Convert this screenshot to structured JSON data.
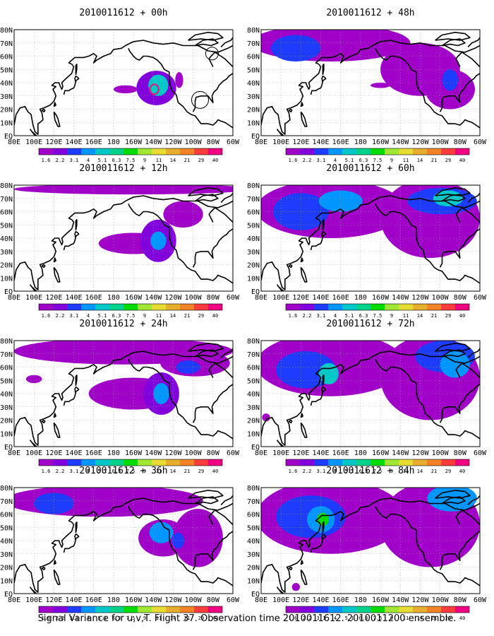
{
  "caption": "Signal Variance for u,v,T. Flight 37. Observation time 2010011612. 2010011200 ensemble.",
  "colors": {
    "land": "#000000",
    "grid": "#a0a0a0",
    "scale": [
      "#a000c8",
      "#8200dc",
      "#1e3cff",
      "#0096ff",
      "#00c8c8",
      "#00d28c",
      "#00dc00",
      "#a0e632",
      "#e6dc32",
      "#e6af2d",
      "#f08228",
      "#fa3c3c",
      "#f00082"
    ],
    "contour": "#e8147a"
  },
  "chart_data": [
    {
      "type": "heatmap",
      "title": "2010011612 + 00h",
      "x_ticks": [
        "80E",
        "100E",
        "120E",
        "140E",
        "160E",
        "180",
        "160W",
        "140W",
        "120W",
        "100W",
        "80W",
        "60W"
      ],
      "y_ticks": [
        "EQ",
        "10N",
        "20N",
        "30N",
        "40N",
        "50N",
        "60N",
        "70N",
        "80N"
      ],
      "legend_values": [
        "1.6",
        "2.2",
        "3.1",
        "4",
        "5.1",
        "6.3",
        "7.5",
        "9",
        "11",
        "14",
        "21",
        "29",
        "40"
      ],
      "blobs": [
        {
          "lon": 223,
          "lat": 36,
          "rlon": 20,
          "rlat": 13,
          "level": 1
        },
        {
          "lon": 225,
          "lat": 38,
          "rlon": 10,
          "rlat": 8,
          "level": 4
        },
        {
          "lon": 192,
          "lat": 35,
          "rlon": 12,
          "rlat": 3,
          "level": 0
        },
        {
          "lon": 246,
          "lat": 42,
          "rlon": 4,
          "rlat": 6,
          "level": 0
        }
      ],
      "markers": [
        {
          "lon": 267,
          "lat": 27,
          "r": 12
        },
        {
          "lon": 279,
          "lat": 62,
          "r": 9
        }
      ]
    },
    {
      "type": "heatmap",
      "title": "2010011612 + 12h",
      "x_ticks": [
        "80E",
        "100E",
        "120E",
        "140E",
        "160E",
        "180",
        "160W",
        "140W",
        "120W",
        "100W",
        "80W",
        "60W"
      ],
      "y_ticks": [
        "EQ",
        "10N",
        "20N",
        "30N",
        "40N",
        "50N",
        "60N",
        "70N",
        "80N"
      ],
      "legend_values": [
        "1.6",
        "2.2",
        "3.1",
        "4",
        "5.1",
        "6.3",
        "7.5",
        "9",
        "11",
        "14",
        "21",
        "29",
        "40"
      ],
      "blobs": [
        {
          "lon": 200,
          "lat": 36,
          "rlon": 35,
          "rlat": 8,
          "level": 0
        },
        {
          "lon": 225,
          "lat": 38,
          "rlon": 18,
          "rlat": 16,
          "level": 1
        },
        {
          "lon": 225,
          "lat": 38,
          "rlon": 8,
          "rlat": 7,
          "level": 3
        },
        {
          "lon": 200,
          "lat": 77,
          "rlon": 120,
          "rlat": 4,
          "level": 0
        },
        {
          "lon": 250,
          "lat": 58,
          "rlon": 20,
          "rlat": 10,
          "level": 0
        }
      ],
      "markers": []
    },
    {
      "type": "heatmap",
      "title": "2010011612 + 24h",
      "x_ticks": [
        "80E",
        "100E",
        "120E",
        "140E",
        "160E",
        "180",
        "160W",
        "140W",
        "120W",
        "100W",
        "80W",
        "60W"
      ],
      "y_ticks": [
        "EQ",
        "10N",
        "20N",
        "30N",
        "40N",
        "50N",
        "60N",
        "70N",
        "80N"
      ],
      "legend_values": [
        "1.6",
        "2.2",
        "3.1",
        "4",
        "5.1",
        "6.3",
        "7.5",
        "9",
        "11",
        "14",
        "21",
        "29",
        "40"
      ],
      "blobs": [
        {
          "lon": 200,
          "lat": 40,
          "rlon": 45,
          "rlat": 12,
          "level": 0
        },
        {
          "lon": 228,
          "lat": 40,
          "rlon": 18,
          "rlat": 16,
          "level": 1
        },
        {
          "lon": 228,
          "lat": 40,
          "rlon": 8,
          "rlat": 8,
          "level": 3
        },
        {
          "lon": 190,
          "lat": 72,
          "rlon": 110,
          "rlat": 10,
          "level": 0
        },
        {
          "lon": 262,
          "lat": 63,
          "rlon": 35,
          "rlat": 10,
          "level": 0
        },
        {
          "lon": 255,
          "lat": 60,
          "rlon": 12,
          "rlat": 5,
          "level": 2
        },
        {
          "lon": 100,
          "lat": 51,
          "rlon": 8,
          "rlat": 3,
          "level": 0
        }
      ],
      "markers": []
    },
    {
      "type": "heatmap",
      "title": "2010011612 + 36h",
      "x_ticks": [
        "80E",
        "100E",
        "120E",
        "140E",
        "160E",
        "180",
        "160W",
        "140W",
        "120W",
        "100W",
        "80W",
        "60W"
      ],
      "y_ticks": [
        "EQ",
        "10N",
        "20N",
        "30N",
        "40N",
        "50N",
        "60N",
        "70N",
        "80N"
      ],
      "legend_values": [
        "1.6",
        "2.2",
        "3.1",
        "4",
        "5.1",
        "6.3",
        "7.5",
        "9",
        "11",
        "14",
        "21",
        "29",
        "40"
      ],
      "blobs": [
        {
          "lon": 170,
          "lat": 70,
          "rlon": 100,
          "rlat": 12,
          "level": 0
        },
        {
          "lon": 230,
          "lat": 42,
          "rlon": 25,
          "rlat": 14,
          "level": 0
        },
        {
          "lon": 265,
          "lat": 42,
          "rlon": 25,
          "rlat": 22,
          "level": 0
        },
        {
          "lon": 120,
          "lat": 68,
          "rlon": 20,
          "rlat": 8,
          "level": 2
        },
        {
          "lon": 228,
          "lat": 46,
          "rlon": 12,
          "rlat": 8,
          "level": 3
        },
        {
          "lon": 245,
          "lat": 40,
          "rlon": 6,
          "rlat": 6,
          "level": 2
        }
      ],
      "markers": []
    },
    {
      "type": "heatmap",
      "title": "2010011612 + 48h",
      "x_ticks": [
        "80E",
        "100E",
        "120E",
        "140E",
        "160E",
        "180",
        "160W",
        "140W",
        "120W",
        "100W",
        "80W",
        "60W"
      ],
      "y_ticks": [
        "EQ",
        "10N",
        "20N",
        "30N",
        "40N",
        "50N",
        "60N",
        "70N",
        "80N"
      ],
      "legend_values": [
        "1.6",
        "2.2",
        "3.1",
        "4",
        "5.1",
        "6.3",
        "7.5",
        "9",
        "11",
        "14",
        "21",
        "29",
        "40"
      ],
      "blobs": [
        {
          "lon": 150,
          "lat": 70,
          "rlon": 80,
          "rlat": 14,
          "level": 0
        },
        {
          "lon": 115,
          "lat": 66,
          "rlon": 25,
          "rlat": 10,
          "level": 2
        },
        {
          "lon": 240,
          "lat": 50,
          "rlon": 40,
          "rlat": 20,
          "level": 0
        },
        {
          "lon": 270,
          "lat": 35,
          "rlon": 25,
          "rlat": 15,
          "level": 0
        },
        {
          "lon": 270,
          "lat": 42,
          "rlon": 8,
          "rlat": 8,
          "level": 2
        },
        {
          "lon": 200,
          "lat": 38,
          "rlon": 10,
          "rlat": 2,
          "level": 0
        }
      ],
      "markers": []
    },
    {
      "type": "heatmap",
      "title": "2010011612 + 60h",
      "x_ticks": [
        "80E",
        "100E",
        "120E",
        "140E",
        "160E",
        "180",
        "160W",
        "140W",
        "120W",
        "100W",
        "80W",
        "60W"
      ],
      "y_ticks": [
        "EQ",
        "10N",
        "20N",
        "30N",
        "40N",
        "50N",
        "60N",
        "70N",
        "80N"
      ],
      "legend_values": [
        "1.6",
        "2.2",
        "3.1",
        "4",
        "5.1",
        "6.3",
        "7.5",
        "9",
        "11",
        "14",
        "21",
        "29",
        "40"
      ],
      "blobs": [
        {
          "lon": 150,
          "lat": 62,
          "rlon": 75,
          "rlat": 22,
          "level": 0
        },
        {
          "lon": 120,
          "lat": 60,
          "rlon": 28,
          "rlat": 14,
          "level": 2
        },
        {
          "lon": 160,
          "lat": 68,
          "rlon": 22,
          "rlat": 8,
          "level": 3
        },
        {
          "lon": 250,
          "lat": 55,
          "rlon": 50,
          "rlat": 30,
          "level": 0
        },
        {
          "lon": 262,
          "lat": 68,
          "rlon": 35,
          "rlat": 10,
          "level": 2
        },
        {
          "lon": 268,
          "lat": 70,
          "rlon": 15,
          "rlat": 6,
          "level": 4
        }
      ],
      "markers": []
    },
    {
      "type": "heatmap",
      "title": "2010011612 + 72h",
      "x_ticks": [
        "80E",
        "100E",
        "120E",
        "140E",
        "160E",
        "180",
        "160W",
        "140W",
        "120W",
        "100W",
        "80W",
        "60W"
      ],
      "y_ticks": [
        "EQ",
        "10N",
        "20N",
        "30N",
        "40N",
        "50N",
        "60N",
        "70N",
        "80N"
      ],
      "legend_values": [
        "1.6",
        "2.2",
        "3.1",
        "4",
        "5.1",
        "6.3",
        "7.5",
        "9",
        "11",
        "14",
        "21",
        "29",
        "40"
      ],
      "blobs": [
        {
          "lon": 150,
          "lat": 62,
          "rlon": 75,
          "rlat": 24,
          "level": 0
        },
        {
          "lon": 125,
          "lat": 58,
          "rlon": 30,
          "rlat": 14,
          "level": 2
        },
        {
          "lon": 148,
          "lat": 55,
          "rlon": 10,
          "rlat": 8,
          "level": 4
        },
        {
          "lon": 250,
          "lat": 52,
          "rlon": 50,
          "rlat": 32,
          "level": 0
        },
        {
          "lon": 265,
          "lat": 68,
          "rlon": 30,
          "rlat": 12,
          "level": 2
        },
        {
          "lon": 275,
          "lat": 62,
          "rlon": 15,
          "rlat": 10,
          "level": 3
        },
        {
          "lon": 85,
          "lat": 22,
          "rlon": 4,
          "rlat": 3,
          "level": 0
        }
      ],
      "markers": []
    },
    {
      "type": "heatmap",
      "title": "2010011612 + 84h",
      "x_ticks": [
        "80E",
        "100E",
        "120E",
        "140E",
        "160E",
        "180",
        "160W",
        "140W",
        "120W",
        "100W",
        "80W",
        "60W"
      ],
      "y_ticks": [
        "EQ",
        "10N",
        "20N",
        "30N",
        "40N",
        "50N",
        "60N",
        "70N",
        "80N"
      ],
      "legend_values": [
        "1.6",
        "2.2",
        "3.1",
        "4",
        "5.1",
        "6.3",
        "7.5",
        "9",
        "11",
        "14",
        "21",
        "29",
        "40"
      ],
      "blobs": [
        {
          "lon": 150,
          "lat": 58,
          "rlon": 75,
          "rlat": 28,
          "level": 0
        },
        {
          "lon": 130,
          "lat": 58,
          "rlon": 35,
          "rlat": 16,
          "level": 2
        },
        {
          "lon": 140,
          "lat": 56,
          "rlon": 14,
          "rlat": 10,
          "level": 3
        },
        {
          "lon": 142,
          "lat": 56,
          "rlon": 6,
          "rlat": 5,
          "level": 6
        },
        {
          "lon": 250,
          "lat": 52,
          "rlon": 50,
          "rlat": 32,
          "level": 0
        },
        {
          "lon": 272,
          "lat": 72,
          "rlon": 25,
          "rlat": 10,
          "level": 3
        },
        {
          "lon": 115,
          "lat": 5,
          "rlon": 4,
          "rlat": 3,
          "level": 0
        }
      ],
      "markers": []
    }
  ]
}
